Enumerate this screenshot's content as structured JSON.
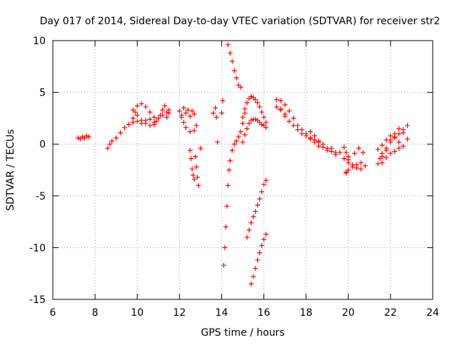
{
  "chart_data": {
    "type": "scatter",
    "title": "Day 017 of 2014, Sidereal Day-to-day VTEC variation (SDTVAR) for receiver str2",
    "xlabel": "GPS time / hours",
    "ylabel": "SDTVAR / TECUs",
    "xlim": [
      6,
      24
    ],
    "ylim": [
      -15,
      10
    ],
    "xticks": [
      6,
      8,
      10,
      12,
      14,
      16,
      18,
      20,
      22,
      24
    ],
    "yticks": [
      -15,
      -10,
      -5,
      0,
      5,
      10
    ],
    "xtick_labels": [
      "6",
      "8",
      "10",
      "12",
      "14",
      "16",
      "18",
      "20",
      "22",
      "24"
    ],
    "ytick_labels": [
      "-15",
      "-10",
      "-5",
      "0",
      "5",
      "10"
    ],
    "grid": true,
    "legend": "none",
    "marker": "+",
    "colors": {
      "series": "#ff0000",
      "axis": "#000000",
      "grid": "#a0a0a0",
      "background": "#ffffff"
    },
    "series": [
      {
        "name": "a",
        "x": [
          7.2,
          7.3,
          7.4,
          7.5,
          7.6,
          7.7
        ],
        "y": [
          0.6,
          0.5,
          0.7,
          0.6,
          0.8,
          0.7
        ]
      },
      {
        "name": "b",
        "x": [
          8.6,
          8.7,
          8.8,
          9.0,
          9.2,
          9.4,
          9.6,
          9.8,
          10.0,
          10.2,
          10.4,
          10.6,
          10.8,
          11.0,
          11.2,
          11.4,
          11.5
        ],
        "y": [
          -0.4,
          0.0,
          0.3,
          0.6,
          1.1,
          1.6,
          1.9,
          2.1,
          2.2,
          2.0,
          2.3,
          2.4,
          2.1,
          2.5,
          2.8,
          3.1,
          3.3
        ]
      },
      {
        "name": "c",
        "x": [
          9.8,
          9.9,
          10.0,
          10.2,
          10.4,
          10.6,
          10.8,
          10.9,
          10.8,
          10.6,
          10.4,
          10.2,
          10.0,
          9.8
        ],
        "y": [
          2.5,
          3.1,
          3.7,
          3.9,
          3.6,
          3.1,
          2.6,
          2.2,
          1.9,
          1.8,
          2.0,
          2.3,
          2.8,
          3.3
        ]
      },
      {
        "name": "d",
        "x": [
          11.1,
          11.2,
          11.3,
          11.4,
          11.5
        ],
        "y": [
          2.8,
          3.3,
          3.7,
          2.6,
          3.0
        ]
      },
      {
        "name": "e",
        "x": [
          12.0,
          12.1,
          12.2,
          12.3,
          12.4,
          12.5,
          12.6,
          12.7,
          12.8,
          12.7,
          12.5,
          12.3,
          12.2,
          12.1
        ],
        "y": [
          3.2,
          2.8,
          3.5,
          3.0,
          3.3,
          2.7,
          3.2,
          2.9,
          1.8,
          1.3,
          1.2,
          1.6,
          2.1,
          2.6
        ]
      },
      {
        "name": "f",
        "x": [
          12.5,
          12.55,
          12.6,
          12.65,
          12.7
        ],
        "y": [
          -0.6,
          -1.4,
          -2.4,
          -3.0,
          -3.4
        ]
      },
      {
        "name": "g",
        "x": [
          12.75,
          12.8,
          12.85,
          12.9,
          13.0
        ],
        "y": [
          -1.2,
          -2.2,
          -3.2,
          -4.0,
          -0.4
        ]
      },
      {
        "name": "h",
        "x": [
          13.6,
          13.7,
          13.75,
          13.8,
          14.0,
          14.05
        ],
        "y": [
          3.0,
          3.5,
          2.6,
          0.2,
          3.0,
          4.2
        ]
      },
      {
        "name": "i",
        "x": [
          14.1,
          14.15,
          14.2,
          14.25,
          14.3,
          14.35,
          14.4,
          14.5,
          14.6,
          14.7,
          14.8,
          14.9,
          15.0,
          15.1
        ],
        "y": [
          -11.7,
          -10.0,
          -8.0,
          -6.0,
          -4.0,
          -2.5,
          -1.6,
          -0.6,
          0.0,
          0.3,
          0.7,
          1.2,
          2.0,
          3.0
        ]
      },
      {
        "name": "j",
        "x": [
          15.0,
          15.1,
          15.2,
          15.3,
          15.4,
          15.5,
          15.6,
          15.7,
          15.8,
          15.9,
          16.0,
          16.1
        ],
        "y": [
          2.6,
          3.4,
          4.0,
          4.4,
          4.6,
          4.5,
          4.3,
          4.0,
          3.6,
          3.1,
          2.6,
          2.1
        ]
      },
      {
        "name": "k",
        "x": [
          14.3,
          14.4,
          14.5,
          14.6,
          14.7,
          14.8,
          14.9
        ],
        "y": [
          9.6,
          8.8,
          8.0,
          7.1,
          6.4,
          5.7,
          5.5
        ]
      },
      {
        "name": "l",
        "x": [
          15.2,
          15.3,
          15.4,
          15.5,
          15.6,
          15.7,
          15.8,
          15.9,
          16.0,
          16.1
        ],
        "y": [
          -9.0,
          -8.3,
          -7.6,
          -7.0,
          -6.5,
          -5.9,
          -5.3,
          -4.6,
          -3.9,
          -3.5
        ]
      },
      {
        "name": "m",
        "x": [
          15.4,
          15.5,
          15.6,
          15.7,
          15.8,
          15.9,
          16.0,
          16.1
        ],
        "y": [
          -13.5,
          -12.8,
          -12.0,
          -11.2,
          -10.5,
          -9.8,
          -9.2,
          -8.7
        ]
      },
      {
        "name": "n",
        "x": [
          15.0,
          15.1,
          15.2,
          15.3,
          15.4,
          15.5,
          15.6,
          15.7,
          15.8,
          15.9,
          16.0,
          16.1
        ],
        "y": [
          0.2,
          0.9,
          1.5,
          2.0,
          2.3,
          2.4,
          2.4,
          2.3,
          2.1,
          1.9,
          1.8,
          1.6
        ]
      },
      {
        "name": "o",
        "x": [
          16.6,
          16.8,
          17.0,
          17.2,
          17.4,
          17.6,
          17.8,
          18.0,
          18.2,
          18.4,
          18.6
        ],
        "y": [
          4.3,
          3.4,
          2.7,
          2.2,
          1.8,
          1.4,
          1.0,
          0.8,
          0.5,
          0.2,
          -0.2
        ]
      },
      {
        "name": "p",
        "x": [
          16.6,
          16.8,
          17.0,
          17.2,
          17.4,
          17.0,
          16.8
        ],
        "y": [
          3.6,
          4.2,
          3.8,
          3.2,
          2.5,
          2.9,
          3.3
        ]
      },
      {
        "name": "q",
        "x": [
          17.6,
          17.8,
          18.0,
          18.2,
          18.4,
          18.6,
          18.8,
          19.0,
          19.2,
          19.4,
          19.6,
          19.8,
          20.0
        ],
        "y": [
          1.8,
          1.4,
          1.0,
          0.6,
          0.4,
          0.2,
          0.0,
          -0.4,
          -0.7,
          -1.0,
          -0.8,
          -1.4,
          -1.8
        ]
      },
      {
        "name": "r",
        "x": [
          18.2,
          18.4,
          18.6,
          18.8,
          19.0,
          19.2,
          19.4
        ],
        "y": [
          1.2,
          0.8,
          0.3,
          -0.3,
          -0.6,
          -0.4,
          -0.8
        ]
      },
      {
        "name": "s",
        "x": [
          19.8,
          19.9,
          20.0,
          20.2,
          20.4,
          20.6,
          20.7,
          20.5,
          20.3,
          20.0,
          19.9
        ],
        "y": [
          -0.3,
          -0.8,
          -1.5,
          -2.0,
          -2.3,
          -1.8,
          -0.8,
          -0.4,
          -0.9,
          -1.2,
          -2.8
        ]
      },
      {
        "name": "t",
        "x": [
          19.9,
          20.0,
          20.2,
          20.4,
          20.6,
          20.8
        ],
        "y": [
          -2.7,
          -2.5,
          -2.2,
          -2.0,
          -2.4,
          -2.1
        ]
      },
      {
        "name": "u",
        "x": [
          21.4,
          21.5,
          21.6,
          21.8,
          22.0,
          22.2,
          22.4,
          22.6,
          22.8
        ],
        "y": [
          -1.9,
          -1.4,
          -0.9,
          -0.4,
          0.2,
          0.7,
          1.0,
          1.4,
          1.8
        ]
      },
      {
        "name": "v",
        "x": [
          21.4,
          21.6,
          21.8,
          22.0,
          22.2,
          22.4,
          22.6,
          22.8,
          22.6,
          22.4,
          22.2,
          22.0,
          21.8,
          21.6
        ],
        "y": [
          -0.5,
          -0.1,
          0.4,
          0.8,
          0.6,
          0.2,
          -0.2,
          0.5,
          1.1,
          1.5,
          1.0,
          0.4,
          -0.6,
          -1.2
        ]
      },
      {
        "name": "w",
        "x": [
          21.6,
          21.8,
          22.0,
          22.2,
          22.4
        ],
        "y": [
          -1.8,
          -1.3,
          -0.9,
          -0.7,
          -0.4
        ]
      }
    ]
  }
}
